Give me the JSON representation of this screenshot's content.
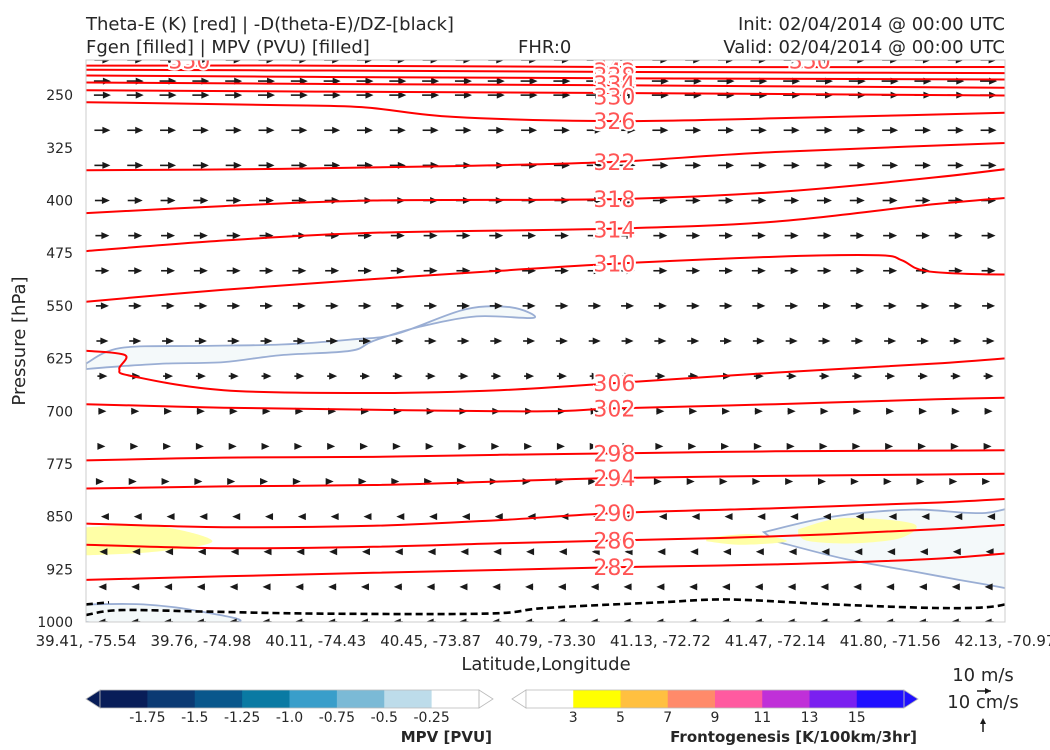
{
  "header": {
    "title_line1": "Theta-E (K) [red] | -D(theta-E)/DZ-[black]",
    "title_line2": "Fgen [filled] | MPV (PVU) [filled]",
    "fhr": "FHR:0",
    "init": "Init: 02/04/2014 @ 00:00 UTC",
    "valid": "Valid: 02/04/2014 @ 00:00 UTC"
  },
  "colors": {
    "theta_e": "#ff0000",
    "theta_e_label": "#ff5555",
    "ddz": "#000000",
    "mpv_fill": "#f4f9fa",
    "mpv_edge": "#9aaed4",
    "fgen_fill": "#ffffa6",
    "barb": "#1a1a1a"
  },
  "chart_data": {
    "type": "contour",
    "xlabel": "Latitude,Longitude",
    "ylabel": "Pressure [hPa]",
    "x_ticks": [
      "39.41, -75.54",
      "39.76, -74.98",
      "40.11, -74.43",
      "40.45, -73.87",
      "40.79, -73.30",
      "41.13, -72.72",
      "41.47, -72.14",
      "41.80, -71.56",
      "42.13, -70.97"
    ],
    "y_ticks": [
      250,
      325,
      400,
      475,
      550,
      625,
      700,
      775,
      850,
      925,
      1000
    ],
    "ylim": [
      1000,
      200
    ],
    "theta_e_contours": [
      {
        "value": 346,
        "label": "346",
        "x": [
          0,
          1.9,
          4.6,
          8.5
        ],
        "p": [
          208,
          208,
          210,
          210
        ]
      },
      {
        "value": 342,
        "label": "342",
        "x": [
          0,
          2.0,
          4.6,
          8.5
        ],
        "p": [
          214,
          215,
          217,
          219
        ]
      },
      {
        "value": 338,
        "label": "338",
        "x": [
          0,
          2.0,
          4.6,
          8.5
        ],
        "p": [
          222,
          224,
          226,
          228
        ]
      },
      {
        "value": 334,
        "label": "334",
        "x": [
          0,
          2.0,
          4.6,
          8.5
        ],
        "p": [
          232,
          234,
          236,
          240
        ]
      },
      {
        "value": 330,
        "label": "330",
        "x": [
          0,
          2.0,
          4.6,
          8.5
        ],
        "p": [
          243,
          245,
          247,
          251
        ]
      },
      {
        "value": 326,
        "label": "326",
        "x": [
          0,
          1.6,
          2.4,
          3.2,
          4.6,
          6.0,
          8.5
        ],
        "p": [
          260,
          264,
          267,
          281,
          287,
          283,
          273
        ]
      },
      {
        "value": 322,
        "label": "322",
        "x": [
          0,
          1.7,
          3.2,
          4.6,
          6.0,
          8.5
        ],
        "p": [
          357,
          355,
          351,
          345,
          331,
          315
        ]
      },
      {
        "value": 318,
        "label": "318",
        "x": [
          0,
          1.2,
          2.5,
          4.6,
          6.0,
          7.4,
          8.5
        ],
        "p": [
          418,
          408,
          400,
          398,
          388,
          367,
          345
        ]
      },
      {
        "value": 314,
        "label": "314",
        "x": [
          0,
          1.2,
          2.5,
          4.6,
          6.0,
          7.4,
          8.5
        ],
        "p": [
          472,
          457,
          446,
          440,
          430,
          405,
          390
        ]
      },
      {
        "value": 310,
        "label": "310",
        "x": [
          0,
          1.2,
          2.4,
          3.6,
          4.6,
          6.0,
          6.9,
          7.1,
          7.3,
          7.8,
          8.5
        ],
        "p": [
          544,
          527,
          513,
          500,
          490,
          480,
          478,
          485,
          500,
          505,
          505
        ]
      },
      {
        "value": 306,
        "label": "306",
        "x": [
          0,
          0.34,
          0.29,
          0.4,
          1.2,
          2.5,
          3.6,
          4.6,
          6.0,
          7.4,
          8.5
        ],
        "p": [
          614,
          620,
          640,
          650,
          670,
          674,
          670,
          660,
          645,
          632,
          618
        ]
      },
      {
        "value": 302,
        "label": "302",
        "x": [
          0,
          1.2,
          2.5,
          4.0,
          4.6,
          6.0,
          7.4,
          8.5
        ],
        "p": [
          690,
          695,
          698,
          700,
          696,
          690,
          683,
          679
        ]
      },
      {
        "value": 298,
        "label": "298",
        "x": [
          0,
          1.2,
          2.5,
          3.6,
          4.6,
          6.0,
          7.4,
          8.5
        ],
        "p": [
          770,
          766,
          765,
          762,
          760,
          757,
          756,
          755
        ]
      },
      {
        "value": 294,
        "label": "294",
        "x": [
          0,
          1.2,
          2.5,
          3.6,
          4.6,
          6.0,
          7.4,
          8.5
        ],
        "p": [
          810,
          807,
          805,
          800,
          795,
          792,
          790,
          788
        ]
      },
      {
        "value": 290,
        "label": "290",
        "x": [
          0,
          1.2,
          2.5,
          3.6,
          4.6,
          6.0,
          7.4,
          8.5
        ],
        "p": [
          860,
          865,
          863,
          855,
          845,
          838,
          830,
          820
        ]
      },
      {
        "value": 286,
        "label": "286",
        "x": [
          0,
          1.2,
          2.5,
          3.6,
          4.6,
          6.0,
          7.4,
          8.5
        ],
        "p": [
          890,
          895,
          893,
          888,
          884,
          878,
          868,
          856
        ]
      },
      {
        "value": 282,
        "label": "282",
        "x": [
          0,
          1.2,
          2.5,
          3.6,
          4.6,
          6.0,
          7.4,
          8.5
        ],
        "p": [
          940,
          935,
          930,
          926,
          922,
          918,
          910,
          895
        ]
      }
    ],
    "theta_e_labels": [
      {
        "text": "346",
        "x": 4.6,
        "p": 210
      },
      {
        "text": "342",
        "x": 4.6,
        "p": 216
      },
      {
        "text": "338",
        "x": 4.6,
        "p": 222
      },
      {
        "text": "334",
        "x": 4.6,
        "p": 234
      },
      {
        "text": "330",
        "x": 4.6,
        "p": 252
      },
      {
        "text": "326",
        "x": 4.6,
        "p": 287
      },
      {
        "text": "322",
        "x": 4.6,
        "p": 345
      },
      {
        "text": "318",
        "x": 4.6,
        "p": 398
      },
      {
        "text": "314",
        "x": 4.6,
        "p": 441
      },
      {
        "text": "310",
        "x": 4.6,
        "p": 490
      },
      {
        "text": "306",
        "x": 4.6,
        "p": 660
      },
      {
        "text": "302",
        "x": 4.6,
        "p": 696
      },
      {
        "text": "298",
        "x": 4.6,
        "p": 760
      },
      {
        "text": "294",
        "x": 4.6,
        "p": 795
      },
      {
        "text": "290",
        "x": 4.6,
        "p": 845
      },
      {
        "text": "286",
        "x": 4.6,
        "p": 884
      },
      {
        "text": "282",
        "x": 4.6,
        "p": 922
      },
      {
        "text": "350",
        "x": 0.9,
        "p": 201
      },
      {
        "text": "350",
        "x": 6.3,
        "p": 201
      }
    ],
    "ddz_lines": [
      {
        "x": [
          0,
          0.3,
          1.0,
          2.0,
          3.5,
          4.0,
          5.0,
          5.6,
          6.5,
          7.4,
          7.9,
          8.2,
          8.5
        ],
        "p": [
          990,
          983,
          985,
          988,
          988,
          980,
          972,
          968,
          975,
          980,
          978,
          965,
          955
        ]
      },
      {
        "x": [
          0,
          0.2
        ],
        "p": [
          975,
          972
        ]
      }
    ],
    "mpv_regions": [
      {
        "name": "mpv-upper-left",
        "x": [
          0,
          0.3,
          1.0,
          1.7,
          2.3,
          2.7,
          3.3,
          3.7,
          3.9,
          3.4,
          2.9,
          2.5,
          2.3,
          1.7,
          1.2,
          0.7,
          0.3,
          0
        ],
        "p": [
          632,
          610,
          607,
          605,
          598,
          590,
          555,
          552,
          567,
          565,
          580,
          600,
          614,
          620,
          630,
          632,
          636,
          640
        ]
      },
      {
        "name": "mpv-lower-right",
        "x": [
          5.9,
          6.5,
          7.2,
          7.8,
          8.5,
          8.5,
          8.1,
          7.6,
          7.2,
          6.6,
          6.0
        ],
        "p": [
          872,
          850,
          840,
          845,
          835,
          972,
          955,
          940,
          928,
          910,
          885
        ]
      },
      {
        "name": "mpv-bottom-left",
        "x": [
          0,
          0.5,
          1.0,
          1.3,
          0,
          0
        ],
        "p": [
          975,
          975,
          985,
          1000,
          1000,
          975
        ]
      }
    ],
    "fgen_regions": [
      {
        "name": "fgen-left",
        "x": [
          0,
          0.6,
          1.1,
          0.6,
          0
        ],
        "p": [
          865,
          863,
          885,
          900,
          905
        ]
      },
      {
        "name": "fgen-mid",
        "x": [
          5.4,
          5.8,
          6.1,
          5.7,
          5.4
        ],
        "p": [
          880,
          875,
          885,
          890,
          885
        ]
      },
      {
        "name": "fgen-right",
        "x": [
          6.2,
          6.6,
          7.2,
          7.1,
          6.7,
          6.3,
          6.2
        ],
        "p": [
          868,
          852,
          860,
          880,
          888,
          885,
          875
        ]
      },
      {
        "name": "fgen-upper-right",
        "x": [
          8.0,
          8.5,
          8.5,
          8.0
        ],
        "p": [
          530,
          515,
          545,
          540
        ]
      }
    ],
    "barbs": [
      {
        "p": 200,
        "dir": 1,
        "len": 16
      },
      {
        "p": 230,
        "dir": 1,
        "len": 17
      },
      {
        "p": 250,
        "dir": 1,
        "len": 17
      },
      {
        "p": 300,
        "dir": 1,
        "len": 16
      },
      {
        "p": 350,
        "dir": 1,
        "len": 16
      },
      {
        "p": 400,
        "dir": 1,
        "len": 15
      },
      {
        "p": 450,
        "dir": 1,
        "len": 14
      },
      {
        "p": 500,
        "dir": 1,
        "len": 14
      },
      {
        "p": 550,
        "dir": 1,
        "len": 13
      },
      {
        "p": 600,
        "dir": 1,
        "len": 12
      },
      {
        "p": 650,
        "dir": 1,
        "len": 10
      },
      {
        "p": 700,
        "dir": 1,
        "len": 8
      },
      {
        "p": 750,
        "dir": 1,
        "len": 6
      },
      {
        "p": 800,
        "dir": 1,
        "len": 3
      },
      {
        "p": 850,
        "dir": -1,
        "len": 3
      },
      {
        "p": 900,
        "dir": -1,
        "len": 6
      },
      {
        "p": 950,
        "dir": -1,
        "len": 8
      },
      {
        "p": 1000,
        "dir": -1,
        "len": 10
      }
    ],
    "barb_columns": 28
  },
  "colorbars": {
    "mpv": {
      "label": "MPV [PVU]",
      "colors": [
        "#081d58",
        "#0b3a73",
        "#09578c",
        "#0a7aa3",
        "#399eca",
        "#7bbad6",
        "#bddcea",
        "#ffffff"
      ],
      "ticks": [
        "-1.75",
        "-1.5",
        "-1.25",
        "-1.0",
        "-0.75",
        "-0.5",
        "-0.25"
      ]
    },
    "fgen": {
      "label": "Frontogenesis [K/100km/3hr]",
      "colors": [
        "#ffffff",
        "#ffff00",
        "#ffc040",
        "#ff8a6a",
        "#ff5aa0",
        "#c030d8",
        "#7a20f0",
        "#2010ff"
      ],
      "ticks": [
        "3",
        "5",
        "7",
        "9",
        "11",
        "13",
        "15"
      ]
    }
  },
  "vector_key": {
    "horizontal": "10 m/s",
    "vertical": "10 cm/s"
  }
}
